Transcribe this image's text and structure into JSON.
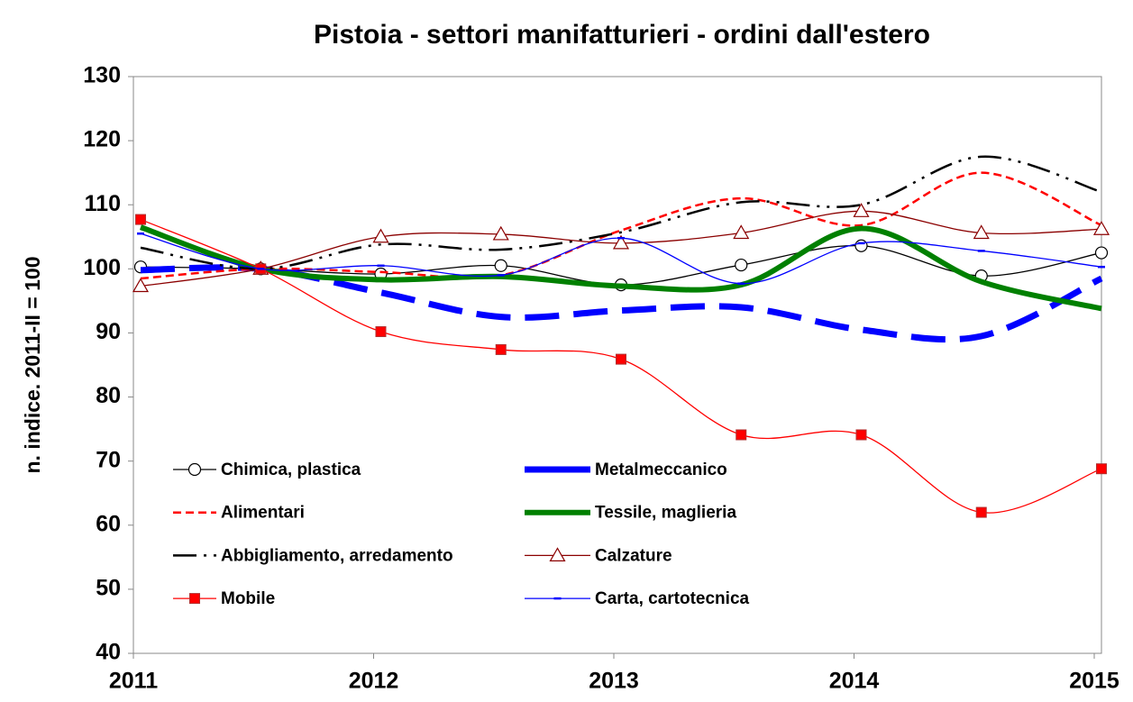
{
  "chart_data": {
    "type": "line",
    "title": "Pistoia  - settori manifatturieri - ordini dall'estero",
    "y_label": "n. indice. 2011-II = 100",
    "x": [
      2011.03,
      2011.53,
      2012.03,
      2012.53,
      2013.03,
      2013.53,
      2014.03,
      2014.53,
      2015.03
    ],
    "xlim": [
      2011,
      2015.03
    ],
    "xticks": [
      2011,
      2012,
      2013,
      2014,
      2015
    ],
    "ylim": [
      40,
      130
    ],
    "yticks": [
      40,
      50,
      60,
      70,
      80,
      90,
      100,
      110,
      120,
      130
    ],
    "grid": false,
    "legend": "inside-bottom-left",
    "series": [
      {
        "name": "Chimica, plastica",
        "color": "#000000",
        "marker": "circle",
        "values": [
          100.3,
          100,
          99.2,
          100.5,
          97.5,
          100.6,
          103.6,
          98.9,
          102.5
        ]
      },
      {
        "name": "Metalmeccanico",
        "color": "#0000ff",
        "marker": "none",
        "values": [
          99.8,
          100,
          96.3,
          92.5,
          93.5,
          94,
          90.5,
          89.5,
          98.5
        ]
      },
      {
        "name": "Alimentari",
        "color": "#ff0000",
        "marker": "none",
        "values": [
          98.5,
          100,
          99.5,
          99,
          106,
          111,
          106.8,
          115,
          106.8
        ]
      },
      {
        "name": "Tessile, maglieria",
        "color": "#008000",
        "marker": "none",
        "values": [
          106.5,
          100,
          98.3,
          98.8,
          97.3,
          97.5,
          106.3,
          98,
          93.8
        ]
      },
      {
        "name": "Abbigliamento, arredamento",
        "color": "#000000",
        "marker": "none",
        "values": [
          103.3,
          100,
          103.8,
          103,
          105.7,
          110.4,
          110,
          117.5,
          112
        ]
      },
      {
        "name": "Calzature",
        "color": "#8b0000",
        "marker": "triangle",
        "values": [
          97.3,
          100,
          105,
          105.4,
          104,
          105.6,
          109,
          105.6,
          106.2
        ]
      },
      {
        "name": "Mobile",
        "color": "#ff0000",
        "marker": "square",
        "values": [
          107.7,
          100,
          90.2,
          87.4,
          85.9,
          74.1,
          74.1,
          62,
          68.8
        ]
      },
      {
        "name": "Carta, cartotecnica",
        "color": "#0000ff",
        "marker": "dash",
        "values": [
          105.5,
          100,
          100.5,
          99,
          104.8,
          97.7,
          104,
          102.8,
          100.3
        ]
      }
    ]
  }
}
